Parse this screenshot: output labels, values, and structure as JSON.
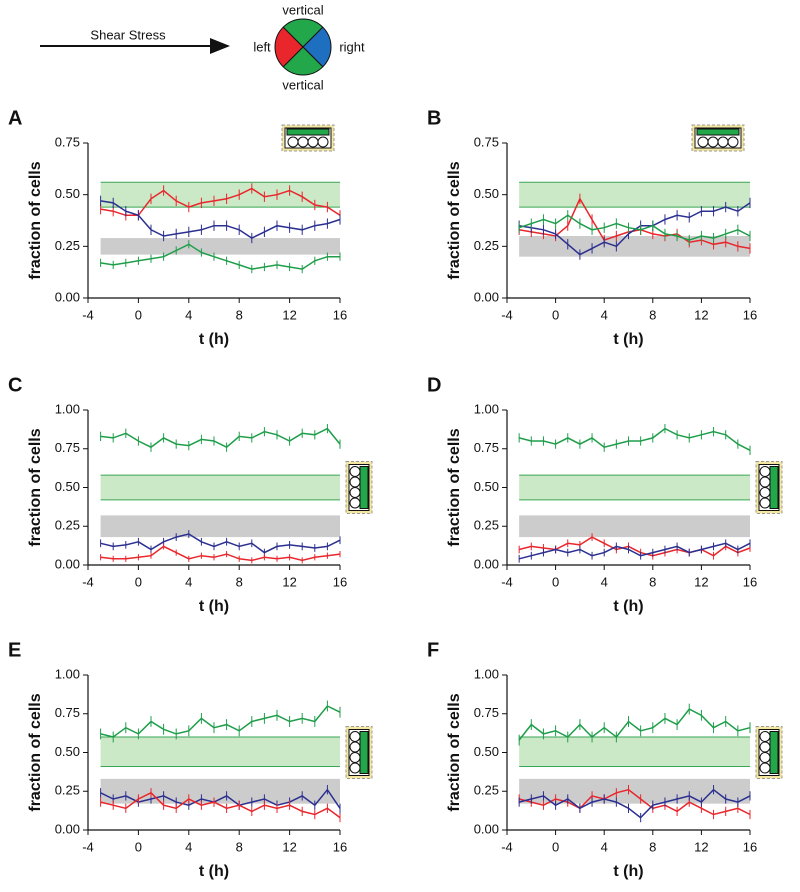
{
  "legend": {
    "arrow_label": "Shear Stress",
    "top": "vertical",
    "left": "left",
    "right": "right",
    "bottom": "vertical"
  },
  "chart_data": [
    {
      "type": "line",
      "panel": "A",
      "xlabel": "t (h)",
      "ylabel": "fraction of cells",
      "xlim": [
        -4,
        16
      ],
      "xticks": [
        -4,
        0,
        4,
        8,
        12,
        16
      ],
      "ylim": [
        0,
        0.75
      ],
      "yticks": [
        {
          "value": 0,
          "label": "0.00"
        },
        {
          "value": 0.25,
          "label": "0.25"
        },
        {
          "value": 0.5,
          "label": "0.50"
        },
        {
          "value": 0.75,
          "label": "0.75"
        }
      ],
      "bands": [
        {
          "range": [
            0.44,
            0.56
          ],
          "color": "#cbe9c6",
          "edge": "#3aa655"
        },
        {
          "range": [
            0.21,
            0.29
          ],
          "color": "#cccccc"
        }
      ],
      "x": [
        -3,
        -2,
        -1,
        0,
        1,
        2,
        3,
        4,
        5,
        6,
        7,
        8,
        9,
        10,
        11,
        12,
        13,
        14,
        15,
        16
      ],
      "series": [
        {
          "color": "#e8262b",
          "error": 0.025,
          "values": [
            0.43,
            0.42,
            0.4,
            0.4,
            0.48,
            0.52,
            0.47,
            0.44,
            0.46,
            0.47,
            0.48,
            0.5,
            0.53,
            0.49,
            0.5,
            0.52,
            0.49,
            0.45,
            0.44,
            0.4
          ]
        },
        {
          "color": "#2b2f8f",
          "error": 0.025,
          "values": [
            0.47,
            0.46,
            0.42,
            0.4,
            0.33,
            0.3,
            0.31,
            0.32,
            0.33,
            0.35,
            0.35,
            0.33,
            0.29,
            0.32,
            0.35,
            0.34,
            0.33,
            0.35,
            0.36,
            0.38
          ]
        },
        {
          "color": "#1f9e4a",
          "error": 0.02,
          "values": [
            0.17,
            0.16,
            0.17,
            0.18,
            0.19,
            0.2,
            0.23,
            0.26,
            0.22,
            0.2,
            0.18,
            0.16,
            0.14,
            0.15,
            0.16,
            0.15,
            0.14,
            0.18,
            0.2,
            0.2
          ]
        }
      ]
    },
    {
      "type": "line",
      "panel": "B",
      "xlabel": "t (h)",
      "ylabel": "fraction of cells",
      "xlim": [
        -4,
        16
      ],
      "xticks": [
        -4,
        0,
        4,
        8,
        12,
        16
      ],
      "ylim": [
        0,
        0.75
      ],
      "yticks": [
        {
          "value": 0,
          "label": "0.00"
        },
        {
          "value": 0.25,
          "label": "0.25"
        },
        {
          "value": 0.5,
          "label": "0.50"
        },
        {
          "value": 0.75,
          "label": "0.75"
        }
      ],
      "bands": [
        {
          "range": [
            0.44,
            0.56
          ],
          "color": "#cbe9c6",
          "edge": "#3aa655"
        },
        {
          "range": [
            0.2,
            0.3
          ],
          "color": "#cccccc"
        }
      ],
      "x": [
        -3,
        -2,
        -1,
        0,
        1,
        2,
        3,
        4,
        5,
        6,
        7,
        8,
        9,
        10,
        11,
        12,
        13,
        14,
        15,
        16
      ],
      "series": [
        {
          "color": "#e8262b",
          "error": 0.025,
          "values": [
            0.33,
            0.32,
            0.31,
            0.3,
            0.35,
            0.48,
            0.38,
            0.28,
            0.3,
            0.32,
            0.33,
            0.31,
            0.3,
            0.31,
            0.27,
            0.28,
            0.26,
            0.27,
            0.25,
            0.24
          ]
        },
        {
          "color": "#2b2f8f",
          "error": 0.025,
          "values": [
            0.35,
            0.34,
            0.33,
            0.31,
            0.26,
            0.21,
            0.24,
            0.27,
            0.25,
            0.31,
            0.35,
            0.35,
            0.38,
            0.4,
            0.39,
            0.42,
            0.42,
            0.44,
            0.42,
            0.46
          ]
        },
        {
          "color": "#1f9e4a",
          "error": 0.025,
          "values": [
            0.34,
            0.36,
            0.38,
            0.36,
            0.4,
            0.36,
            0.33,
            0.34,
            0.36,
            0.34,
            0.33,
            0.35,
            0.31,
            0.3,
            0.28,
            0.3,
            0.29,
            0.31,
            0.33,
            0.3
          ]
        }
      ]
    },
    {
      "type": "line",
      "panel": "C",
      "xlabel": "t (h)",
      "ylabel": "fraction of cells",
      "xlim": [
        -4,
        16
      ],
      "xticks": [
        -4,
        0,
        4,
        8,
        12,
        16
      ],
      "ylim": [
        0,
        1
      ],
      "yticks": [
        {
          "value": 0,
          "label": "0.00"
        },
        {
          "value": 0.25,
          "label": "0.25"
        },
        {
          "value": 0.5,
          "label": "0.50"
        },
        {
          "value": 0.75,
          "label": "0.75"
        },
        {
          "value": 1,
          "label": "1.00"
        }
      ],
      "bands": [
        {
          "range": [
            0.42,
            0.58
          ],
          "color": "#cbe9c6",
          "edge": "#3aa655"
        },
        {
          "range": [
            0.18,
            0.32
          ],
          "color": "#cccccc"
        }
      ],
      "x": [
        -3,
        -2,
        -1,
        0,
        1,
        2,
        3,
        4,
        5,
        6,
        7,
        8,
        9,
        10,
        11,
        12,
        13,
        14,
        15,
        16
      ],
      "series": [
        {
          "color": "#1f9e4a",
          "error": 0.03,
          "values": [
            0.83,
            0.82,
            0.85,
            0.8,
            0.76,
            0.82,
            0.78,
            0.77,
            0.81,
            0.8,
            0.76,
            0.83,
            0.82,
            0.86,
            0.84,
            0.8,
            0.85,
            0.84,
            0.88,
            0.78
          ]
        },
        {
          "color": "#2b2f8f",
          "error": 0.025,
          "values": [
            0.14,
            0.12,
            0.13,
            0.15,
            0.1,
            0.15,
            0.18,
            0.2,
            0.15,
            0.12,
            0.15,
            0.12,
            0.14,
            0.08,
            0.12,
            0.13,
            0.12,
            0.11,
            0.12,
            0.16
          ]
        },
        {
          "color": "#e8262b",
          "error": 0.02,
          "values": [
            0.05,
            0.04,
            0.04,
            0.05,
            0.06,
            0.12,
            0.08,
            0.04,
            0.06,
            0.05,
            0.07,
            0.04,
            0.03,
            0.05,
            0.04,
            0.05,
            0.03,
            0.05,
            0.06,
            0.07
          ]
        }
      ]
    },
    {
      "type": "line",
      "panel": "D",
      "xlabel": "t (h)",
      "ylabel": "fraction of cells",
      "xlim": [
        -4,
        16
      ],
      "xticks": [
        -4,
        0,
        4,
        8,
        12,
        16
      ],
      "ylim": [
        0,
        1
      ],
      "yticks": [
        {
          "value": 0,
          "label": "0.00"
        },
        {
          "value": 0.25,
          "label": "0.25"
        },
        {
          "value": 0.5,
          "label": "0.50"
        },
        {
          "value": 0.75,
          "label": "0.75"
        },
        {
          "value": 1,
          "label": "1.00"
        }
      ],
      "bands": [
        {
          "range": [
            0.42,
            0.58
          ],
          "color": "#cbe9c6",
          "edge": "#3aa655"
        },
        {
          "range": [
            0.18,
            0.32
          ],
          "color": "#cccccc"
        }
      ],
      "x": [
        -3,
        -2,
        -1,
        0,
        1,
        2,
        3,
        4,
        5,
        6,
        7,
        8,
        9,
        10,
        11,
        12,
        13,
        14,
        15,
        16
      ],
      "series": [
        {
          "color": "#1f9e4a",
          "error": 0.03,
          "values": [
            0.82,
            0.8,
            0.8,
            0.78,
            0.82,
            0.78,
            0.82,
            0.76,
            0.78,
            0.8,
            0.8,
            0.82,
            0.88,
            0.84,
            0.82,
            0.84,
            0.86,
            0.84,
            0.78,
            0.74
          ]
        },
        {
          "color": "#e8262b",
          "error": 0.025,
          "values": [
            0.1,
            0.12,
            0.11,
            0.1,
            0.14,
            0.13,
            0.18,
            0.14,
            0.1,
            0.12,
            0.08,
            0.06,
            0.08,
            0.1,
            0.08,
            0.1,
            0.06,
            0.12,
            0.08,
            0.11
          ]
        },
        {
          "color": "#2b2f8f",
          "error": 0.025,
          "values": [
            0.04,
            0.06,
            0.08,
            0.1,
            0.08,
            0.1,
            0.06,
            0.08,
            0.12,
            0.1,
            0.06,
            0.08,
            0.1,
            0.12,
            0.08,
            0.1,
            0.12,
            0.14,
            0.1,
            0.14
          ]
        }
      ]
    },
    {
      "type": "line",
      "panel": "E",
      "xlabel": "t (h)",
      "ylabel": "fraction of cells",
      "xlim": [
        -4,
        16
      ],
      "xticks": [
        -4,
        0,
        4,
        8,
        12,
        16
      ],
      "ylim": [
        0,
        1
      ],
      "yticks": [
        {
          "value": 0,
          "label": "0.00"
        },
        {
          "value": 0.25,
          "label": "0.25"
        },
        {
          "value": 0.5,
          "label": "0.50"
        },
        {
          "value": 0.75,
          "label": "0.75"
        },
        {
          "value": 1,
          "label": "1.00"
        }
      ],
      "bands": [
        {
          "range": [
            0.41,
            0.6
          ],
          "color": "#cbe9c6",
          "edge": "#3aa655"
        },
        {
          "range": [
            0.17,
            0.33
          ],
          "color": "#cccccc"
        }
      ],
      "x": [
        -3,
        -2,
        -1,
        0,
        1,
        2,
        3,
        4,
        5,
        6,
        7,
        8,
        9,
        10,
        11,
        12,
        13,
        14,
        15,
        16
      ],
      "series": [
        {
          "color": "#1f9e4a",
          "error": 0.035,
          "values": [
            0.62,
            0.6,
            0.66,
            0.62,
            0.7,
            0.65,
            0.62,
            0.64,
            0.72,
            0.66,
            0.68,
            0.64,
            0.7,
            0.72,
            0.74,
            0.7,
            0.72,
            0.7,
            0.8,
            0.76
          ]
        },
        {
          "color": "#2b2f8f",
          "error": 0.03,
          "values": [
            0.24,
            0.2,
            0.22,
            0.18,
            0.2,
            0.22,
            0.18,
            0.16,
            0.2,
            0.18,
            0.22,
            0.16,
            0.18,
            0.2,
            0.16,
            0.18,
            0.22,
            0.16,
            0.26,
            0.14
          ]
        },
        {
          "color": "#e8262b",
          "error": 0.03,
          "values": [
            0.18,
            0.16,
            0.14,
            0.2,
            0.24,
            0.16,
            0.14,
            0.2,
            0.16,
            0.18,
            0.14,
            0.16,
            0.12,
            0.16,
            0.14,
            0.16,
            0.12,
            0.1,
            0.14,
            0.08
          ]
        }
      ]
    },
    {
      "type": "line",
      "panel": "F",
      "xlabel": "t (h)",
      "ylabel": "fraction of cells",
      "xlim": [
        -4,
        16
      ],
      "xticks": [
        -4,
        0,
        4,
        8,
        12,
        16
      ],
      "ylim": [
        0,
        1
      ],
      "yticks": [
        {
          "value": 0,
          "label": "0.00"
        },
        {
          "value": 0.25,
          "label": "0.25"
        },
        {
          "value": 0.5,
          "label": "0.50"
        },
        {
          "value": 0.75,
          "label": "0.75"
        },
        {
          "value": 1,
          "label": "1.00"
        }
      ],
      "bands": [
        {
          "range": [
            0.41,
            0.6
          ],
          "color": "#cbe9c6",
          "edge": "#3aa655"
        },
        {
          "range": [
            0.17,
            0.33
          ],
          "color": "#cccccc"
        }
      ],
      "x": [
        -3,
        -2,
        -1,
        0,
        1,
        2,
        3,
        4,
        5,
        6,
        7,
        8,
        9,
        10,
        11,
        12,
        13,
        14,
        15,
        16
      ],
      "series": [
        {
          "color": "#1f9e4a",
          "error": 0.035,
          "values": [
            0.58,
            0.68,
            0.62,
            0.64,
            0.6,
            0.68,
            0.6,
            0.66,
            0.6,
            0.7,
            0.64,
            0.66,
            0.72,
            0.68,
            0.78,
            0.74,
            0.66,
            0.7,
            0.64,
            0.66
          ]
        },
        {
          "color": "#e8262b",
          "error": 0.03,
          "values": [
            0.2,
            0.18,
            0.16,
            0.2,
            0.18,
            0.14,
            0.22,
            0.2,
            0.24,
            0.26,
            0.2,
            0.14,
            0.16,
            0.12,
            0.18,
            0.14,
            0.1,
            0.12,
            0.14,
            0.1
          ]
        },
        {
          "color": "#2b2f8f",
          "error": 0.03,
          "values": [
            0.18,
            0.2,
            0.22,
            0.16,
            0.2,
            0.14,
            0.18,
            0.2,
            0.18,
            0.14,
            0.08,
            0.16,
            0.18,
            0.2,
            0.22,
            0.18,
            0.26,
            0.2,
            0.18,
            0.22
          ]
        }
      ]
    }
  ]
}
